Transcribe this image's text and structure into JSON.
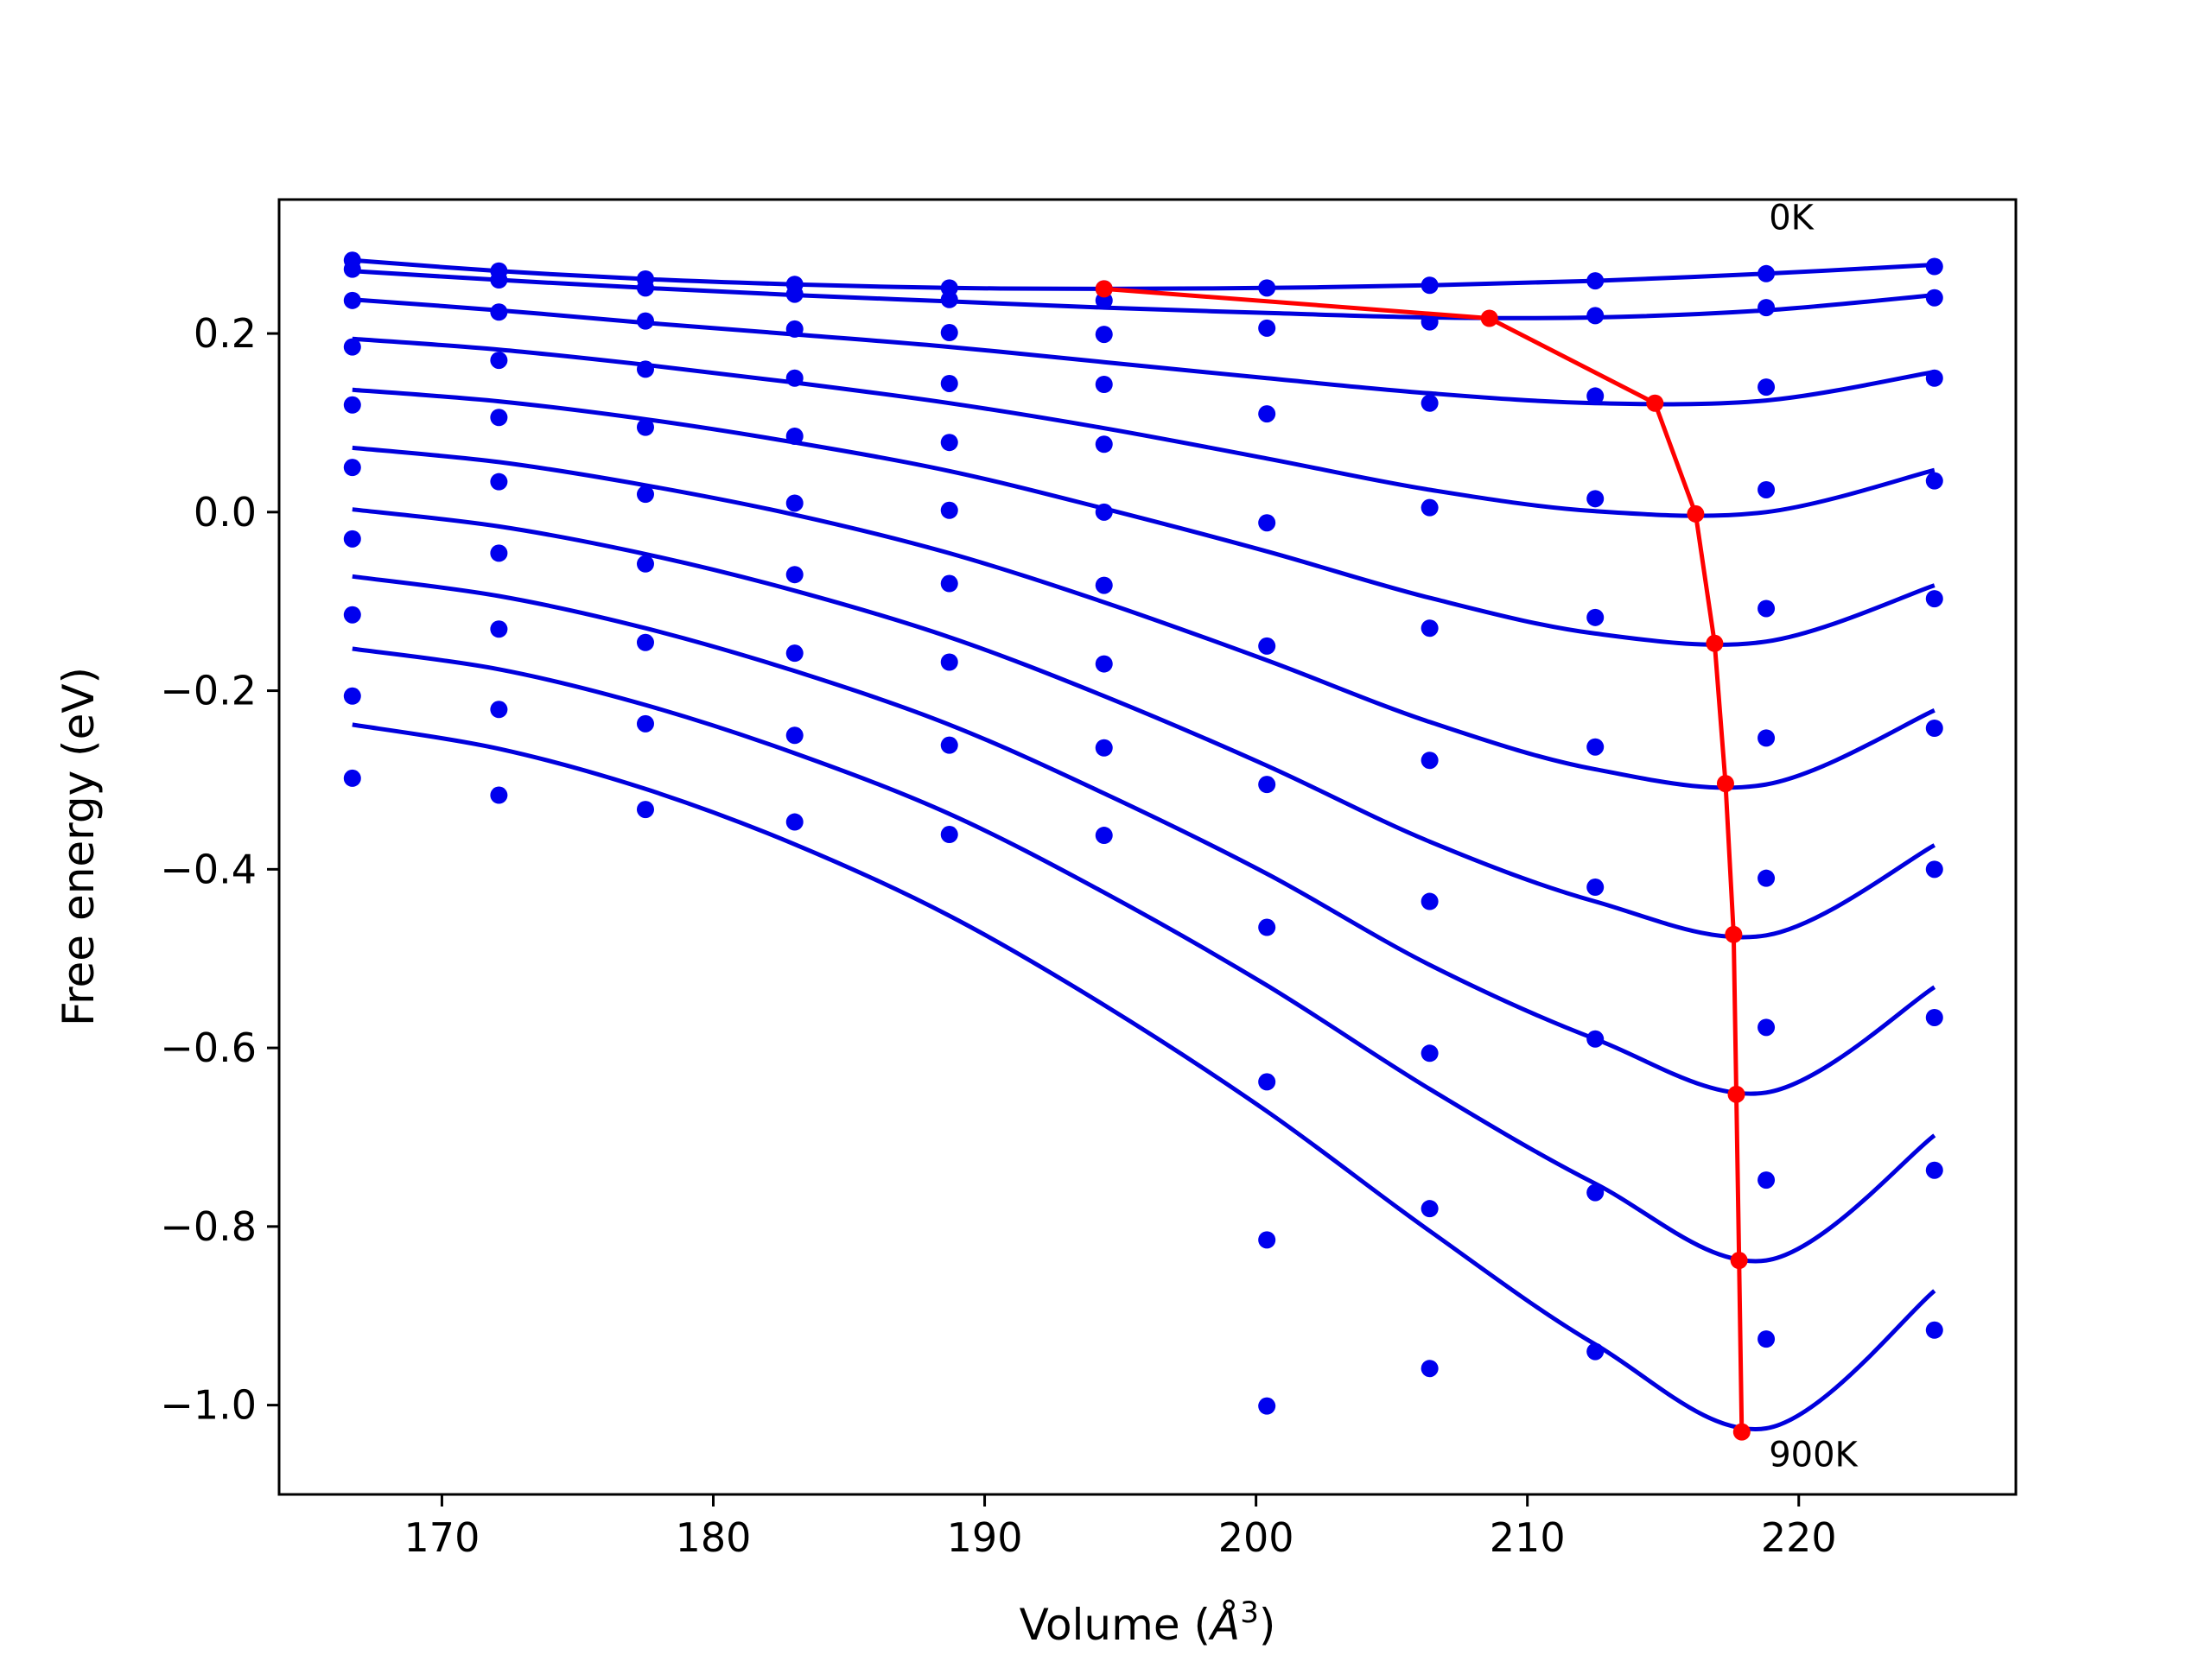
{
  "chart_data": {
    "type": "line",
    "xlabel_main": "Volume (",
    "xlabel_unit": "Å",
    "xlabel_exp": "3",
    "xlabel_close": ")",
    "ylabel": "Free energy (eV)",
    "xlim": [
      164,
      228
    ],
    "ylim": [
      -1.1,
      0.35
    ],
    "xticks": [
      170,
      180,
      190,
      200,
      210,
      220
    ],
    "xtick_labels": [
      "170",
      "180",
      "190",
      "200",
      "210",
      "220"
    ],
    "yticks": [
      0.2,
      0.0,
      -0.2,
      -0.4,
      -0.6,
      -0.8,
      -1.0
    ],
    "ytick_labels": [
      "0.2",
      "0.0",
      "−0.2",
      "−0.4",
      "−0.6",
      "−0.8",
      "−1.0"
    ],
    "annotations": [
      {
        "text": "0K",
        "x": 218.9,
        "y": 0.33
      },
      {
        "text": "900K",
        "x": 218.9,
        "y": -1.055
      }
    ],
    "colors": {
      "fit": "#0000dd",
      "points": "#0000ee",
      "minima": "#ff0000"
    },
    "volumes": [
      166.7,
      172.1,
      177.5,
      183.0,
      188.7,
      194.4,
      200.4,
      206.4,
      212.5,
      218.8,
      225.0
    ],
    "series": [
      {
        "points": [
          0.282,
          0.27,
          0.261,
          0.255,
          0.251,
          0.25,
          0.251,
          0.254,
          0.259,
          0.267,
          0.275
        ],
        "curve": [
          0.282,
          0.27,
          0.261,
          0.255,
          0.251,
          0.25,
          0.251,
          0.254,
          0.259,
          0.267,
          0.277
        ]
      },
      {
        "points": [
          0.272,
          0.26,
          0.251,
          0.244,
          0.238,
          0.237,
          0.206,
          0.213,
          0.22,
          0.229,
          0.24
        ],
        "curve": [
          0.27,
          0.26,
          0.251,
          0.243,
          0.236,
          0.229,
          0.223,
          0.218,
          0.218,
          0.226,
          0.243
        ]
      },
      {
        "points": [
          0.237,
          0.224,
          0.214,
          0.205,
          0.201,
          0.199,
          0.11,
          0.122,
          0.13,
          0.14,
          0.15
        ],
        "curve": [
          0.238,
          0.226,
          0.212,
          0.199,
          0.185,
          0.168,
          0.15,
          0.133,
          0.122,
          0.125,
          0.157
        ]
      },
      {
        "points": [
          0.185,
          0.17,
          0.16,
          0.15,
          0.144,
          0.143,
          -0.012,
          0.005,
          0.015,
          0.025,
          0.035
        ],
        "curve": [
          0.194,
          0.182,
          0.165,
          0.145,
          0.122,
          0.094,
          0.06,
          0.025,
          0.001,
          0.0,
          0.047
        ]
      },
      {
        "points": [
          0.12,
          0.106,
          0.095,
          0.085,
          0.078,
          0.076,
          -0.15,
          -0.13,
          -0.118,
          -0.108,
          -0.097
        ],
        "curve": [
          0.137,
          0.124,
          0.104,
          0.078,
          0.046,
          0.004,
          -0.044,
          -0.096,
          -0.136,
          -0.145,
          -0.082
        ]
      },
      {
        "points": [
          0.05,
          0.034,
          0.02,
          0.01,
          0.002,
          0.0,
          -0.305,
          -0.278,
          -0.263,
          -0.253,
          -0.242
        ],
        "curve": [
          0.072,
          0.056,
          0.03,
          -0.003,
          -0.046,
          -0.101,
          -0.166,
          -0.235,
          -0.288,
          -0.305,
          -0.222
        ]
      },
      {
        "points": [
          -0.03,
          -0.046,
          -0.058,
          -0.07,
          -0.08,
          -0.082,
          -0.465,
          -0.436,
          -0.42,
          -0.41,
          -0.4
        ],
        "curve": [
          0.003,
          -0.016,
          -0.047,
          -0.088,
          -0.14,
          -0.206,
          -0.284,
          -0.369,
          -0.436,
          -0.474,
          -0.373
        ]
      },
      {
        "points": [
          -0.115,
          -0.131,
          -0.146,
          -0.158,
          -0.168,
          -0.17,
          -0.638,
          -0.606,
          -0.59,
          -0.577,
          -0.566
        ],
        "curve": [
          -0.072,
          -0.094,
          -0.13,
          -0.178,
          -0.238,
          -0.315,
          -0.405,
          -0.507,
          -0.59,
          -0.65,
          -0.532
        ]
      },
      {
        "points": [
          -0.206,
          -0.221,
          -0.237,
          -0.25,
          -0.261,
          -0.264,
          -0.815,
          -0.78,
          -0.762,
          -0.748,
          -0.737
        ],
        "curve": [
          -0.153,
          -0.176,
          -0.216,
          -0.27,
          -0.338,
          -0.426,
          -0.53,
          -0.646,
          -0.752,
          -0.838,
          -0.698
        ]
      },
      {
        "points": [
          -0.298,
          -0.317,
          -0.333,
          -0.347,
          -0.361,
          -0.362,
          -1.001,
          -0.959,
          -0.94,
          -0.926,
          -0.916
        ],
        "curve": [
          -0.238,
          -0.265,
          -0.31,
          -0.372,
          -0.452,
          -0.552,
          -0.671,
          -0.805,
          -0.932,
          -1.026,
          -0.872
        ]
      }
    ],
    "minima": {
      "x": [
        194.4,
        208.6,
        214.7,
        216.2,
        216.9,
        217.3,
        217.6,
        217.7,
        217.8,
        217.9
      ],
      "y": [
        0.25,
        0.217,
        0.122,
        -0.002,
        -0.147,
        -0.304,
        -0.473,
        -0.652,
        -0.838,
        -1.03
      ]
    }
  }
}
